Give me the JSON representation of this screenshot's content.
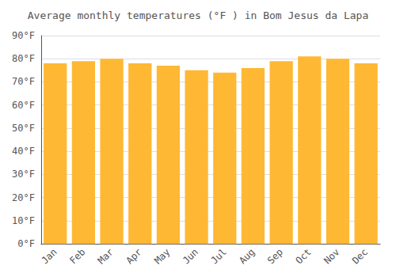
{
  "chart_data": {
    "type": "bar",
    "title": "Average monthly temperatures (°F ) in Bom Jesus da Lapa",
    "categories": [
      "Jan",
      "Feb",
      "Mar",
      "Apr",
      "May",
      "Jun",
      "Jul",
      "Aug",
      "Sep",
      "Oct",
      "Nov",
      "Dec"
    ],
    "values": [
      78,
      79,
      80,
      78,
      77,
      75,
      74,
      76,
      79,
      81,
      80,
      78
    ],
    "color": "#FFB833",
    "ylim": [
      0,
      90
    ],
    "yticks": [
      {
        "value": 0,
        "label": "0°F"
      },
      {
        "value": 10,
        "label": "10°F"
      },
      {
        "value": 20,
        "label": "20°F"
      },
      {
        "value": 30,
        "label": "30°F"
      },
      {
        "value": 40,
        "label": "40°F"
      },
      {
        "value": 50,
        "label": "50°F"
      },
      {
        "value": 60,
        "label": "60°F"
      },
      {
        "value": 70,
        "label": "70°F"
      },
      {
        "value": 80,
        "label": "80°F"
      },
      {
        "value": 90,
        "label": "90°F"
      }
    ],
    "grid": true
  }
}
